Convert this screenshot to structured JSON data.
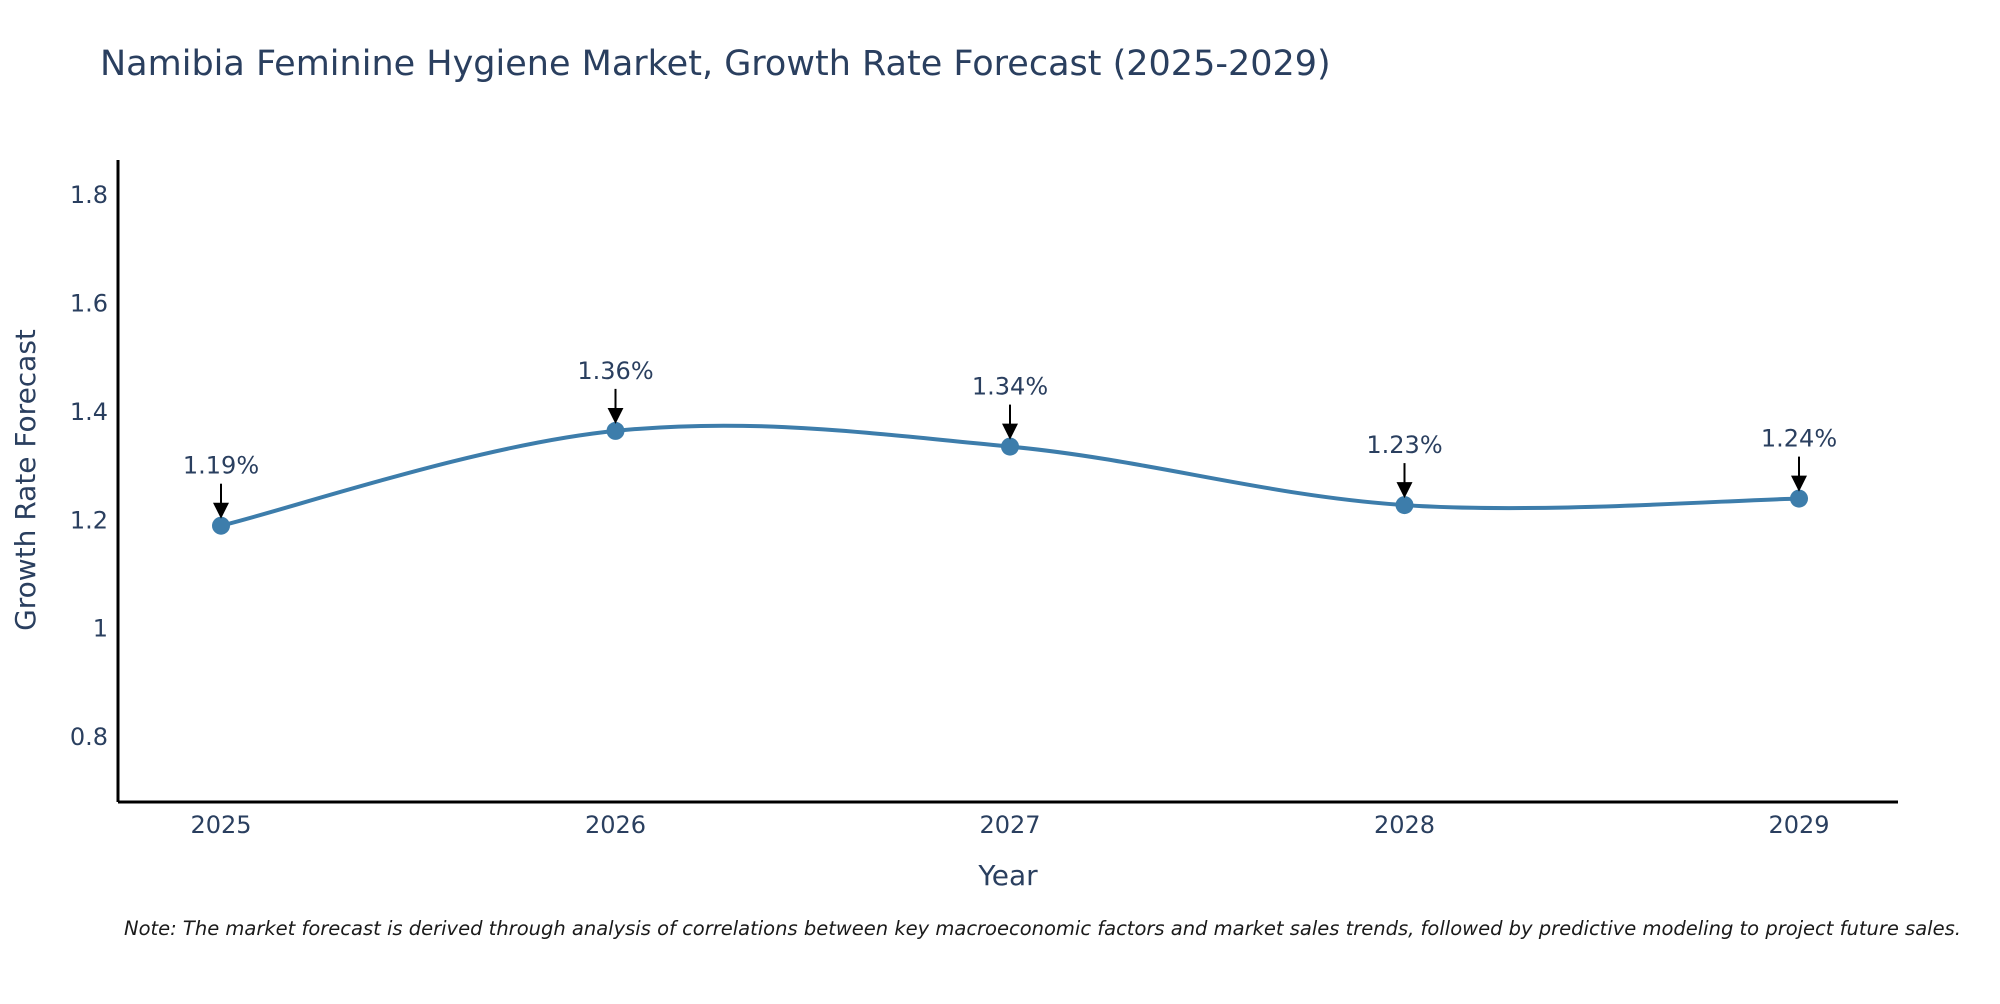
{
  "chart_data": {
    "type": "line",
    "title": "Namibia Feminine Hygiene Market, Growth Rate Forecast (2025-2029)",
    "xlabel": "Year",
    "ylabel": "Growth Rate Forecast",
    "categories": [
      "2025",
      "2026",
      "2027",
      "2028",
      "2029"
    ],
    "series": [
      {
        "name": "Growth Rate Forecast",
        "values": [
          1.19,
          1.365,
          1.336,
          1.228,
          1.24
        ]
      }
    ],
    "data_labels": [
      "1.19%",
      "1.36%",
      "1.34%",
      "1.23%",
      "1.24%"
    ],
    "y_ticks": [
      0.8,
      1,
      1.2,
      1.4,
      1.6,
      1.8
    ],
    "y_tick_labels": [
      "0.8",
      "1",
      "1.2",
      "1.4",
      "1.6",
      "1.8"
    ],
    "ylim": [
      0.68,
      1.865
    ],
    "grid": false,
    "line_color": "#3d7dab",
    "note": "Note: The market forecast is derived through analysis of correlations between key macroeconomic factors and market sales trends, followed by predictive modeling to project future sales."
  }
}
